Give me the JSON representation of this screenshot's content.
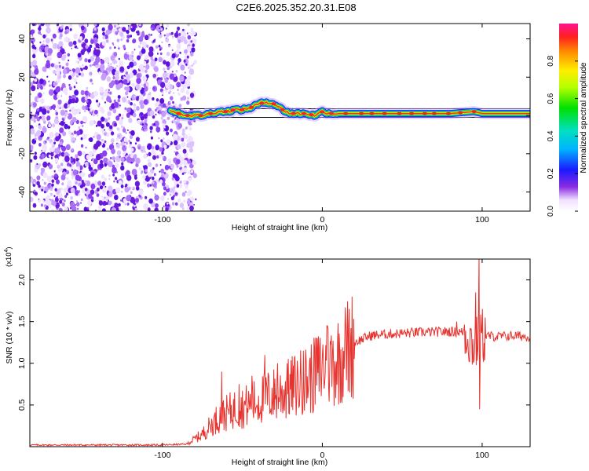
{
  "title": "C2E6.2025.352.20.31.E08",
  "colors": {
    "snr_line": "#e8322e",
    "ridge": "#e8322e",
    "scatter": "#6a1bd9",
    "band_edge": "#000000"
  },
  "chart_data": [
    {
      "type": "heatmap",
      "name": "spectrogram",
      "xlabel": "Height of straight line (km)",
      "ylabel": "Frequency (Hz)",
      "xlim": [
        -183,
        130
      ],
      "ylim": [
        -50,
        48
      ],
      "x_ticks": [
        -100,
        0,
        100
      ],
      "y_ticks": [
        -40,
        -20,
        0,
        20,
        40
      ],
      "x_tick_labels": [
        "-100",
        "0",
        "100"
      ],
      "y_tick_labels": [
        "-40",
        "-20",
        "0",
        "20",
        "40"
      ],
      "noise_region_x": [
        -183,
        -85
      ],
      "ridge_x_start": -95,
      "ridge_freq_hz": [
        [
          -95,
          3
        ],
        [
          -90,
          1
        ],
        [
          -85,
          0
        ],
        [
          -80,
          0
        ],
        [
          -75,
          0
        ],
        [
          -70,
          1
        ],
        [
          -65,
          2
        ],
        [
          -60,
          2
        ],
        [
          -55,
          3
        ],
        [
          -50,
          3
        ],
        [
          -45,
          4
        ],
        [
          -40,
          6
        ],
        [
          -35,
          7
        ],
        [
          -30,
          6
        ],
        [
          -25,
          3
        ],
        [
          -20,
          1
        ],
        [
          -15,
          1
        ],
        [
          -10,
          1
        ],
        [
          -5,
          0
        ],
        [
          0,
          2
        ],
        [
          5,
          1
        ],
        [
          10,
          1
        ],
        [
          20,
          1
        ],
        [
          40,
          1
        ],
        [
          60,
          1
        ],
        [
          80,
          1
        ],
        [
          95,
          2
        ],
        [
          100,
          1
        ],
        [
          110,
          1
        ],
        [
          130,
          1
        ]
      ],
      "colorbar": {
        "label": "Normalized spectral amplitude",
        "range": [
          0,
          1
        ],
        "ticks": [
          0.0,
          0.2,
          0.4,
          0.6,
          0.8
        ],
        "tick_labels": [
          "0.0",
          "0.2",
          "0.4",
          "0.6",
          "0.8"
        ]
      }
    },
    {
      "type": "line",
      "name": "snr",
      "xlabel": "Height of straight line (km)",
      "ylabel": "SNR (10 * v/v)",
      "y_multiplier": "(x10",
      "y_multiplier_exp": "4",
      "xlim": [
        -183,
        130
      ],
      "ylim": [
        0,
        2.25
      ],
      "x_ticks": [
        -100,
        0,
        100
      ],
      "y_ticks": [
        0.5,
        1.0,
        1.5,
        2.0
      ],
      "x_tick_labels": [
        "-100",
        "0",
        "100"
      ],
      "y_tick_labels": [
        "0.5",
        "1.0",
        "1.5",
        "2.0"
      ],
      "envelope": [
        [
          -183,
          0.02
        ],
        [
          -100,
          0.02
        ],
        [
          -85,
          0.03
        ],
        [
          -75,
          0.15
        ],
        [
          -65,
          0.35
        ],
        [
          -55,
          0.45
        ],
        [
          -45,
          0.5
        ],
        [
          -35,
          0.6
        ],
        [
          -25,
          0.65
        ],
        [
          -15,
          0.75
        ],
        [
          -5,
          0.85
        ],
        [
          0,
          0.95
        ],
        [
          5,
          1.0
        ],
        [
          10,
          1.05
        ],
        [
          15,
          1.15
        ],
        [
          20,
          1.25
        ],
        [
          30,
          1.33
        ],
        [
          40,
          1.35
        ],
        [
          60,
          1.37
        ],
        [
          80,
          1.38
        ],
        [
          90,
          1.37
        ],
        [
          95,
          1.2
        ],
        [
          100,
          1.33
        ],
        [
          110,
          1.32
        ],
        [
          120,
          1.33
        ],
        [
          130,
          1.32
        ]
      ],
      "spikes": [
        [
          -63,
          0.9
        ],
        [
          -52,
          0.75
        ],
        [
          -44,
          0.85
        ],
        [
          -36,
          1.1
        ],
        [
          -28,
          1.0
        ],
        [
          -22,
          1.0
        ],
        [
          -12,
          1.15
        ],
        [
          -4,
          1.3
        ],
        [
          3,
          1.45
        ],
        [
          14,
          1.3
        ],
        [
          84,
          1.5
        ],
        [
          96,
          1.85
        ],
        [
          98,
          2.3
        ],
        [
          98.5,
          0.45
        ]
      ]
    }
  ]
}
